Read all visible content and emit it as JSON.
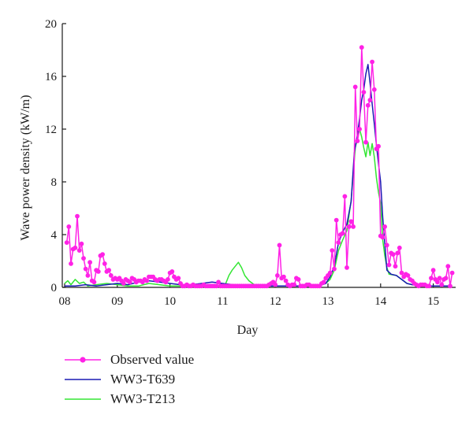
{
  "chart_data": {
    "type": "line",
    "xlabel": "Day",
    "ylabel": "Wave power density (kW/m)",
    "xlim": [
      8.0,
      15.45
    ],
    "ylim": [
      0,
      20
    ],
    "x_ticks": [
      8,
      9,
      10,
      11,
      12,
      13,
      14,
      15
    ],
    "x_tick_labels": [
      "08",
      "09",
      "10",
      "11",
      "12",
      "13",
      "14",
      "15"
    ],
    "y_ticks": [
      0,
      4,
      8,
      12,
      16,
      20
    ],
    "y_tick_labels": [
      "0",
      "4",
      "8",
      "12",
      "16",
      "20"
    ],
    "legend_position": "bottom-left",
    "series": [
      {
        "name": "Observed value",
        "color": "#ff22e6",
        "marker": "circle",
        "points": [
          [
            8.04,
            3.4
          ],
          [
            8.08,
            4.6
          ],
          [
            8.12,
            1.8
          ],
          [
            8.16,
            2.9
          ],
          [
            8.2,
            3.0
          ],
          [
            8.24,
            5.4
          ],
          [
            8.28,
            2.8
          ],
          [
            8.32,
            3.3
          ],
          [
            8.36,
            2.2
          ],
          [
            8.4,
            1.4
          ],
          [
            8.44,
            0.9
          ],
          [
            8.48,
            1.9
          ],
          [
            8.52,
            0.5
          ],
          [
            8.56,
            0.4
          ],
          [
            8.6,
            1.3
          ],
          [
            8.64,
            1.2
          ],
          [
            8.68,
            2.4
          ],
          [
            8.72,
            2.5
          ],
          [
            8.76,
            1.8
          ],
          [
            8.8,
            1.2
          ],
          [
            8.84,
            1.3
          ],
          [
            8.88,
            0.9
          ],
          [
            8.92,
            0.6
          ],
          [
            8.96,
            0.7
          ],
          [
            9.0,
            0.6
          ],
          [
            9.04,
            0.7
          ],
          [
            9.08,
            0.5
          ],
          [
            9.12,
            0.3
          ],
          [
            9.16,
            0.6
          ],
          [
            9.2,
            0.5
          ],
          [
            9.24,
            0.4
          ],
          [
            9.28,
            0.7
          ],
          [
            9.32,
            0.6
          ],
          [
            9.36,
            0.4
          ],
          [
            9.4,
            0.5
          ],
          [
            9.44,
            0.5
          ],
          [
            9.48,
            0.4
          ],
          [
            9.52,
            0.6
          ],
          [
            9.56,
            0.5
          ],
          [
            9.6,
            0.8
          ],
          [
            9.64,
            0.8
          ],
          [
            9.68,
            0.8
          ],
          [
            9.72,
            0.6
          ],
          [
            9.76,
            0.5
          ],
          [
            9.8,
            0.6
          ],
          [
            9.84,
            0.6
          ],
          [
            9.88,
            0.5
          ],
          [
            9.92,
            0.4
          ],
          [
            9.96,
            0.6
          ],
          [
            10.0,
            1.1
          ],
          [
            10.04,
            1.2
          ],
          [
            10.08,
            0.8
          ],
          [
            10.12,
            0.6
          ],
          [
            10.16,
            0.7
          ],
          [
            10.2,
            0.3
          ],
          [
            10.24,
            0.1
          ],
          [
            10.28,
            0.1
          ],
          [
            10.32,
            0.2
          ],
          [
            10.36,
            0.1
          ],
          [
            10.4,
            0.1
          ],
          [
            10.44,
            0.2
          ],
          [
            10.48,
            0.1
          ],
          [
            10.52,
            0.1
          ],
          [
            10.56,
            0.1
          ],
          [
            10.6,
            0.1
          ],
          [
            10.64,
            0.2
          ],
          [
            10.68,
            0.1
          ],
          [
            10.72,
            0.1
          ],
          [
            10.76,
            0.1
          ],
          [
            10.8,
            0.1
          ],
          [
            10.84,
            0.1
          ],
          [
            10.88,
            0.1
          ],
          [
            10.92,
            0.4
          ],
          [
            10.96,
            0.1
          ],
          [
            11.0,
            0.1
          ],
          [
            11.04,
            0.1
          ],
          [
            11.08,
            0.1
          ],
          [
            11.12,
            0.1
          ],
          [
            11.16,
            0.1
          ],
          [
            11.2,
            0.1
          ],
          [
            11.24,
            0.1
          ],
          [
            11.28,
            0.1
          ],
          [
            11.32,
            0.1
          ],
          [
            11.36,
            0.1
          ],
          [
            11.4,
            0.1
          ],
          [
            11.44,
            0.1
          ],
          [
            11.48,
            0.1
          ],
          [
            11.52,
            0.1
          ],
          [
            11.56,
            0.1
          ],
          [
            11.6,
            0.1
          ],
          [
            11.64,
            0.1
          ],
          [
            11.68,
            0.1
          ],
          [
            11.72,
            0.1
          ],
          [
            11.76,
            0.1
          ],
          [
            11.8,
            0.1
          ],
          [
            11.84,
            0.1
          ],
          [
            11.88,
            0.2
          ],
          [
            11.92,
            0.3
          ],
          [
            11.96,
            0.4
          ],
          [
            12.0,
            0.2
          ],
          [
            12.04,
            0.9
          ],
          [
            12.08,
            3.2
          ],
          [
            12.12,
            0.7
          ],
          [
            12.16,
            0.8
          ],
          [
            12.2,
            0.5
          ],
          [
            12.24,
            0.2
          ],
          [
            12.28,
            0.1
          ],
          [
            12.32,
            0.2
          ],
          [
            12.36,
            0.2
          ],
          [
            12.4,
            0.7
          ],
          [
            12.44,
            0.6
          ],
          [
            12.48,
            0.1
          ],
          [
            12.52,
            0.1
          ],
          [
            12.56,
            0.1
          ],
          [
            12.6,
            0.2
          ],
          [
            12.64,
            0.2
          ],
          [
            12.68,
            0.1
          ],
          [
            12.72,
            0.1
          ],
          [
            12.76,
            0.1
          ],
          [
            12.8,
            0.1
          ],
          [
            12.84,
            0.1
          ],
          [
            12.88,
            0.3
          ],
          [
            12.92,
            0.4
          ],
          [
            12.96,
            0.7
          ],
          [
            13.0,
            0.9
          ],
          [
            13.04,
            1.1
          ],
          [
            13.08,
            2.8
          ],
          [
            13.12,
            1.4
          ],
          [
            13.16,
            5.1
          ],
          [
            13.2,
            3.4
          ],
          [
            13.24,
            4.0
          ],
          [
            13.28,
            4.1
          ],
          [
            13.32,
            6.9
          ],
          [
            13.36,
            1.5
          ],
          [
            13.4,
            4.6
          ],
          [
            13.44,
            5.0
          ],
          [
            13.48,
            4.6
          ],
          [
            13.52,
            15.2
          ],
          [
            13.56,
            11.1
          ],
          [
            13.6,
            12.0
          ],
          [
            13.64,
            18.2
          ],
          [
            13.68,
            14.8
          ],
          [
            13.72,
            11.0
          ],
          [
            13.76,
            13.8
          ],
          [
            13.8,
            14.2
          ],
          [
            13.84,
            17.1
          ],
          [
            13.88,
            15.0
          ],
          [
            13.92,
            10.5
          ],
          [
            13.96,
            10.7
          ],
          [
            14.0,
            3.9
          ],
          [
            14.04,
            3.8
          ],
          [
            14.08,
            4.6
          ],
          [
            14.12,
            3.2
          ],
          [
            14.16,
            1.7
          ],
          [
            14.2,
            2.6
          ],
          [
            14.24,
            2.5
          ],
          [
            14.28,
            1.6
          ],
          [
            14.32,
            2.6
          ],
          [
            14.36,
            3.0
          ],
          [
            14.4,
            1.1
          ],
          [
            14.44,
            0.8
          ],
          [
            14.48,
            1.0
          ],
          [
            14.52,
            0.9
          ],
          [
            14.56,
            0.6
          ],
          [
            14.6,
            0.5
          ],
          [
            14.64,
            0.3
          ],
          [
            14.68,
            0.2
          ],
          [
            14.72,
            0.1
          ],
          [
            14.76,
            0.2
          ],
          [
            14.8,
            0.2
          ],
          [
            14.84,
            0.2
          ],
          [
            14.88,
            0.1
          ],
          [
            14.92,
            0.1
          ],
          [
            14.96,
            0.7
          ],
          [
            15.0,
            1.3
          ],
          [
            15.04,
            0.6
          ],
          [
            15.08,
            0.4
          ],
          [
            15.12,
            0.7
          ],
          [
            15.16,
            0.2
          ],
          [
            15.2,
            0.6
          ],
          [
            15.24,
            0.7
          ],
          [
            15.28,
            1.6
          ],
          [
            15.32,
            0.1
          ],
          [
            15.36,
            1.1
          ]
        ]
      },
      {
        "name": "WW3-T639",
        "color": "#1a1ab4",
        "marker": "none",
        "points": [
          [
            8.0,
            0.1
          ],
          [
            8.2,
            0.1
          ],
          [
            8.4,
            0.2
          ],
          [
            8.6,
            0.1
          ],
          [
            8.8,
            0.2
          ],
          [
            9.0,
            0.3
          ],
          [
            9.2,
            0.2
          ],
          [
            9.4,
            0.4
          ],
          [
            9.6,
            0.5
          ],
          [
            9.8,
            0.4
          ],
          [
            10.0,
            0.3
          ],
          [
            10.2,
            0.2
          ],
          [
            10.4,
            0.2
          ],
          [
            10.6,
            0.3
          ],
          [
            10.8,
            0.4
          ],
          [
            11.0,
            0.3
          ],
          [
            11.2,
            0.2
          ],
          [
            11.4,
            0.1
          ],
          [
            11.6,
            0.1
          ],
          [
            11.8,
            0.1
          ],
          [
            12.0,
            0.1
          ],
          [
            12.2,
            0.1
          ],
          [
            12.4,
            0.1
          ],
          [
            12.6,
            0.1
          ],
          [
            12.8,
            0.1
          ],
          [
            12.96,
            0.3
          ],
          [
            13.04,
            0.8
          ],
          [
            13.12,
            1.6
          ],
          [
            13.2,
            3.4
          ],
          [
            13.28,
            4.2
          ],
          [
            13.36,
            4.8
          ],
          [
            13.44,
            6.5
          ],
          [
            13.5,
            10.2
          ],
          [
            13.56,
            11.6
          ],
          [
            13.6,
            12.8
          ],
          [
            13.64,
            14.2
          ],
          [
            13.68,
            15.0
          ],
          [
            13.72,
            16.2
          ],
          [
            13.76,
            16.9
          ],
          [
            13.8,
            15.5
          ],
          [
            13.84,
            13.9
          ],
          [
            13.88,
            12.4
          ],
          [
            13.92,
            10.8
          ],
          [
            13.96,
            9.4
          ],
          [
            14.0,
            8.0
          ],
          [
            14.04,
            5.3
          ],
          [
            14.08,
            3.3
          ],
          [
            14.12,
            1.3
          ],
          [
            14.2,
            1.0
          ],
          [
            14.3,
            0.9
          ],
          [
            14.4,
            0.6
          ],
          [
            14.5,
            0.3
          ],
          [
            14.6,
            0.2
          ],
          [
            14.8,
            0.1
          ],
          [
            15.0,
            0.1
          ],
          [
            15.2,
            0.1
          ],
          [
            15.3,
            0.1
          ]
        ]
      },
      {
        "name": "WW3-T213",
        "color": "#33e633",
        "marker": "none",
        "points": [
          [
            8.0,
            0.3
          ],
          [
            8.06,
            0.5
          ],
          [
            8.12,
            0.2
          ],
          [
            8.2,
            0.6
          ],
          [
            8.28,
            0.3
          ],
          [
            8.36,
            0.4
          ],
          [
            8.44,
            0.1
          ],
          [
            8.6,
            0.2
          ],
          [
            8.8,
            0.3
          ],
          [
            9.0,
            0.2
          ],
          [
            9.2,
            0.1
          ],
          [
            9.4,
            0.1
          ],
          [
            9.6,
            0.3
          ],
          [
            9.8,
            0.2
          ],
          [
            10.0,
            0.1
          ],
          [
            10.2,
            0.1
          ],
          [
            10.4,
            0.1
          ],
          [
            10.6,
            0.1
          ],
          [
            10.8,
            0.1
          ],
          [
            11.0,
            0.1
          ],
          [
            11.06,
            0.3
          ],
          [
            11.12,
            0.9
          ],
          [
            11.18,
            1.3
          ],
          [
            11.24,
            1.6
          ],
          [
            11.3,
            1.9
          ],
          [
            11.36,
            1.5
          ],
          [
            11.42,
            0.9
          ],
          [
            11.5,
            0.5
          ],
          [
            11.6,
            0.2
          ],
          [
            11.7,
            0.1
          ],
          [
            11.8,
            0.1
          ],
          [
            12.0,
            0.1
          ],
          [
            12.2,
            0.1
          ],
          [
            12.4,
            0.1
          ],
          [
            12.6,
            0.1
          ],
          [
            12.8,
            0.1
          ],
          [
            12.96,
            0.3
          ],
          [
            13.04,
            0.6
          ],
          [
            13.12,
            1.3
          ],
          [
            13.2,
            2.8
          ],
          [
            13.28,
            3.6
          ],
          [
            13.36,
            4.3
          ],
          [
            13.44,
            6.6
          ],
          [
            13.48,
            8.6
          ],
          [
            13.52,
            10.6
          ],
          [
            13.56,
            11.3
          ],
          [
            13.6,
            12.0
          ],
          [
            13.64,
            11.4
          ],
          [
            13.68,
            10.6
          ],
          [
            13.72,
            9.9
          ],
          [
            13.76,
            11.0
          ],
          [
            13.8,
            10.0
          ],
          [
            13.84,
            10.9
          ],
          [
            13.88,
            9.9
          ],
          [
            13.92,
            8.3
          ],
          [
            13.96,
            7.2
          ],
          [
            14.0,
            6.4
          ],
          [
            14.04,
            3.6
          ],
          [
            14.08,
            2.4
          ],
          [
            14.12,
            1.5
          ],
          [
            14.16,
            1.0
          ],
          [
            14.3,
            0.9
          ],
          [
            14.4,
            0.6
          ],
          [
            14.5,
            0.3
          ],
          [
            14.6,
            0.2
          ],
          [
            14.8,
            0.1
          ],
          [
            15.0,
            0.1
          ],
          [
            15.2,
            0.1
          ],
          [
            15.3,
            0.1
          ]
        ]
      }
    ]
  }
}
